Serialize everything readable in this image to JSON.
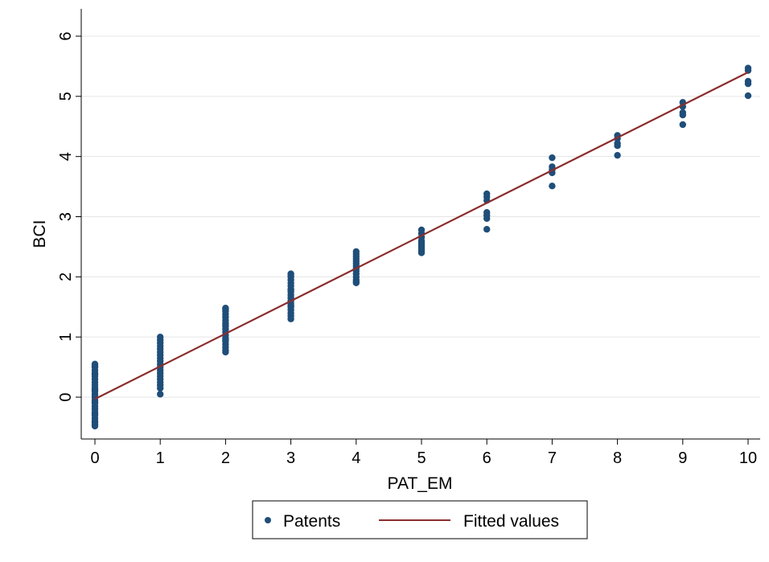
{
  "chart_data": {
    "type": "scatter",
    "xlabel": "PAT_EM",
    "ylabel": "BCI",
    "xlim": [
      0,
      10
    ],
    "ylim": [
      -0.7,
      6.4
    ],
    "xticks": [
      "0",
      "1",
      "2",
      "3",
      "4",
      "5",
      "6",
      "7",
      "8",
      "9",
      "10"
    ],
    "yticks": [
      "0",
      "1",
      "2",
      "3",
      "4",
      "5",
      "6"
    ],
    "grid": "horizontal",
    "legend_position": "bottom",
    "colors": {
      "patents": "#1f4e79",
      "fitted": "#8b2d2d",
      "grid": "#e5e5e5",
      "axis": "#000000"
    },
    "series": [
      {
        "name": "Patents",
        "kind": "scatter",
        "x": [
          0,
          0,
          0,
          0,
          0,
          0,
          0,
          0,
          0,
          0,
          0,
          0,
          0,
          0,
          0,
          0,
          0,
          0,
          0,
          0,
          0,
          0,
          0,
          0,
          0,
          0,
          0,
          0,
          1,
          1,
          1,
          1,
          1,
          1,
          1,
          1,
          1,
          1,
          1,
          1,
          1,
          1,
          1,
          1,
          1,
          1,
          1,
          2,
          2,
          2,
          2,
          2,
          2,
          2,
          2,
          2,
          2,
          2,
          2,
          2,
          2,
          2,
          2,
          2,
          2,
          2,
          3,
          3,
          3,
          3,
          3,
          3,
          3,
          3,
          3,
          3,
          3,
          3,
          3,
          3,
          3,
          3,
          3,
          3,
          3,
          4,
          4,
          4,
          4,
          4,
          4,
          4,
          4,
          4,
          4,
          4,
          4,
          4,
          4,
          5,
          5,
          5,
          5,
          5,
          5,
          5,
          5,
          5,
          5,
          6,
          6,
          6,
          6,
          6,
          6,
          6,
          7,
          7,
          7,
          7,
          7,
          8,
          8,
          8,
          8,
          8,
          9,
          9,
          9,
          9,
          9,
          10,
          10,
          10,
          10,
          10
        ],
        "y": [
          0.55,
          0.5,
          0.45,
          0.4,
          0.35,
          0.3,
          0.25,
          0.2,
          0.15,
          0.1,
          0.05,
          0.0,
          -0.05,
          -0.1,
          -0.15,
          -0.2,
          -0.25,
          -0.3,
          -0.35,
          -0.4,
          -0.45,
          -0.48,
          0.52,
          0.38,
          0.12,
          -0.08,
          -0.28,
          -0.42,
          1.0,
          0.95,
          0.9,
          0.85,
          0.8,
          0.75,
          0.7,
          0.65,
          0.6,
          0.55,
          0.5,
          0.45,
          0.4,
          0.35,
          0.3,
          0.25,
          0.2,
          0.15,
          0.05,
          1.48,
          1.43,
          1.38,
          1.33,
          1.28,
          1.23,
          1.18,
          1.13,
          1.08,
          1.03,
          0.98,
          0.93,
          0.88,
          0.83,
          0.78,
          0.75,
          1.46,
          1.2,
          0.95,
          2.05,
          2.0,
          1.95,
          1.9,
          1.85,
          1.8,
          1.75,
          1.7,
          1.65,
          1.6,
          1.55,
          1.5,
          1.45,
          1.4,
          1.35,
          1.3,
          2.02,
          1.78,
          1.52,
          2.42,
          2.38,
          2.34,
          2.3,
          2.26,
          2.22,
          2.18,
          2.14,
          2.1,
          2.05,
          2.0,
          1.95,
          1.92,
          1.9,
          2.78,
          2.72,
          2.66,
          2.6,
          2.56,
          2.52,
          2.48,
          2.45,
          2.42,
          2.4,
          3.38,
          3.33,
          3.27,
          3.07,
          3.02,
          2.97,
          2.79,
          3.98,
          3.83,
          3.78,
          3.73,
          3.51,
          4.35,
          4.3,
          4.22,
          4.18,
          4.02,
          4.9,
          4.83,
          4.73,
          4.69,
          4.53,
          5.47,
          5.43,
          5.25,
          5.21,
          5.01
        ]
      },
      {
        "name": "Fitted values",
        "kind": "line",
        "x": [
          0,
          10
        ],
        "y": [
          -0.03,
          5.4
        ]
      }
    ]
  }
}
